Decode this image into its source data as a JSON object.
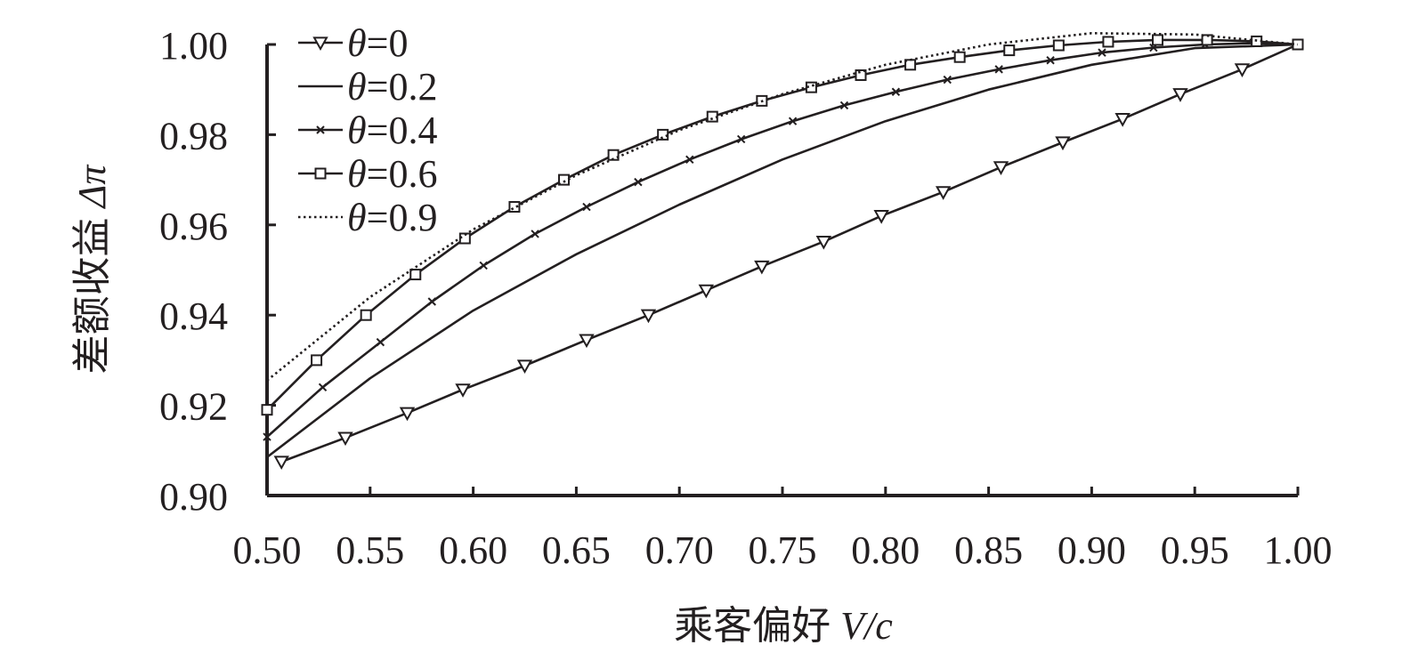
{
  "chart_data": {
    "type": "line",
    "xlabel": "乘客偏好 V/c",
    "xlabel_parts": {
      "text": "乘客偏好 ",
      "var": "V/c"
    },
    "ylabel": "差额收益 Δπ",
    "ylabel_parts": {
      "text": "差额收益 ",
      "var": "Δπ"
    },
    "xlim": [
      0.5,
      1.0
    ],
    "ylim": [
      0.9,
      1.0
    ],
    "x_ticks": [
      "0.50",
      "0.55",
      "0.60",
      "0.65",
      "0.70",
      "0.75",
      "0.80",
      "0.85",
      "0.90",
      "0.95",
      "1.00"
    ],
    "y_ticks": [
      "1.00",
      "0.98",
      "0.96",
      "0.94",
      "0.92",
      "0.90"
    ],
    "grid": false,
    "legend_position": "top-left",
    "legend": [
      {
        "label": "θ=0",
        "prefix": "θ",
        "suffix": "=0",
        "marker": "triangle-down",
        "style": "solid"
      },
      {
        "label": "θ=0.2",
        "prefix": "θ",
        "suffix": "=0.2",
        "marker": "none",
        "style": "solid"
      },
      {
        "label": "θ=0.4",
        "prefix": "θ",
        "suffix": "=0.4",
        "marker": "x",
        "style": "solid"
      },
      {
        "label": "θ=0.6",
        "prefix": "θ",
        "suffix": "=0.6",
        "marker": "square",
        "style": "solid"
      },
      {
        "label": "θ=0.9",
        "prefix": "θ",
        "suffix": "=0.9",
        "marker": "none",
        "style": "dotted"
      }
    ],
    "series": [
      {
        "name": "θ=0",
        "x": [
          0.507,
          0.538,
          0.568,
          0.595,
          0.625,
          0.655,
          0.685,
          0.713,
          0.74,
          0.77,
          0.798,
          0.828,
          0.856,
          0.886,
          0.915,
          0.943,
          0.973,
          1.0
        ],
        "y": [
          0.9075,
          0.9128,
          0.9183,
          0.9235,
          0.9288,
          0.9345,
          0.94,
          0.9455,
          0.9508,
          0.9563,
          0.962,
          0.9673,
          0.9728,
          0.9783,
          0.9835,
          0.989,
          0.9945,
          1.0
        ]
      },
      {
        "name": "θ=0.2",
        "x": [
          0.5,
          0.55,
          0.6,
          0.65,
          0.7,
          0.75,
          0.8,
          0.85,
          0.9,
          0.95,
          1.0
        ],
        "y": [
          0.9085,
          0.926,
          0.941,
          0.9535,
          0.9645,
          0.9745,
          0.983,
          0.99,
          0.9955,
          0.9992,
          1.0
        ]
      },
      {
        "name": "θ=0.4",
        "x": [
          0.5,
          0.527,
          0.555,
          0.58,
          0.605,
          0.63,
          0.655,
          0.68,
          0.705,
          0.73,
          0.755,
          0.78,
          0.805,
          0.83,
          0.855,
          0.88,
          0.905,
          0.93,
          0.955,
          0.98,
          1.0
        ],
        "y": [
          0.913,
          0.924,
          0.934,
          0.943,
          0.951,
          0.958,
          0.964,
          0.9695,
          0.9745,
          0.979,
          0.983,
          0.9865,
          0.9895,
          0.9922,
          0.9945,
          0.9965,
          0.9982,
          0.9993,
          1.0,
          1.0003,
          1.0
        ]
      },
      {
        "name": "θ=0.6",
        "x": [
          0.5,
          0.524,
          0.548,
          0.572,
          0.596,
          0.62,
          0.644,
          0.668,
          0.692,
          0.716,
          0.74,
          0.764,
          0.788,
          0.812,
          0.836,
          0.86,
          0.884,
          0.908,
          0.932,
          0.956,
          0.98,
          1.0
        ],
        "y": [
          0.919,
          0.93,
          0.94,
          0.949,
          0.957,
          0.964,
          0.97,
          0.9755,
          0.98,
          0.984,
          0.9875,
          0.9905,
          0.9932,
          0.9955,
          0.9972,
          0.9987,
          0.9998,
          1.0006,
          1.001,
          1.001,
          1.0007,
          1.0
        ]
      },
      {
        "name": "θ=0.9",
        "x": [
          0.5,
          0.55,
          0.6,
          0.65,
          0.7,
          0.75,
          0.8,
          0.85,
          0.9,
          0.95,
          1.0
        ],
        "y": [
          0.9255,
          0.944,
          0.959,
          0.971,
          0.981,
          0.989,
          0.9955,
          1.0,
          1.0025,
          1.0022,
          1.0
        ]
      }
    ]
  }
}
